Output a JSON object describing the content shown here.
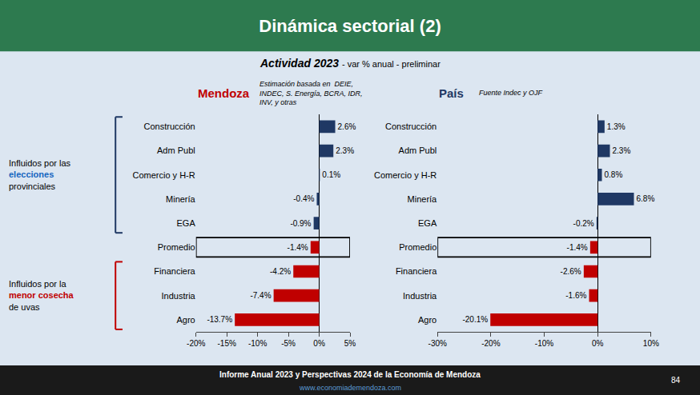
{
  "title": "Dinámica sectorial (2)",
  "subtitle": [
    "Actividad 2023",
    "- var % anual - preliminar"
  ],
  "background": "#dce6f1",
  "header": {
    "color": "#2d7a4f"
  },
  "footer": {
    "text": "Informe Anual 2023 y Perspectivas 2024 de la Economía de Mendoza",
    "url": "www.economiademendoza.com",
    "page": "84",
    "color": "#1a1a1a",
    "url_color": "#5b9bd5"
  },
  "annotations": [
    {
      "text": [
        "Influidos por las",
        {
          "text": "elecciones",
          "color": "#1565c0"
        },
        "provinciales"
      ],
      "bracket": {
        "from": "Construcción",
        "to": "EGA",
        "color": "#1f3864"
      }
    },
    {
      "text": [
        "Influidos por la",
        {
          "text": "menor cosecha",
          "color": "#c00000"
        },
        "de uvas"
      ],
      "bracket": {
        "from": "Financiera",
        "to": "Agro",
        "color": "#c00000"
      }
    }
  ],
  "chart_data": [
    {
      "type": "bar",
      "orientation": "horizontal",
      "title": {
        "text": "Mendoza",
        "color": "#c00000"
      },
      "note": "Estimación basada en  DEIE,\nINDEC, S. Energía, BCRA, IDR,\nINV, y otras",
      "categories": [
        "Construcción",
        "Adm Publ",
        "Comercio y H-R",
        "Minería",
        "EGA",
        "Promedio",
        "Financiera",
        "Industria",
        "Agro"
      ],
      "values": [
        2.6,
        2.3,
        0.1,
        -0.4,
        -0.9,
        -1.4,
        -4.2,
        -7.4,
        -13.7
      ],
      "value_labels": [
        "2.6%",
        "2.3%",
        "0.1%",
        "-0.4%",
        "-0.9%",
        "-1.4%",
        "-4.2%",
        "-7.4%",
        "-13.7%"
      ],
      "colors": [
        "#1f3864",
        "#1f3864",
        "#1f3864",
        "#1f3864",
        "#1f3864",
        "#c00000",
        "#c00000",
        "#c00000",
        "#c00000"
      ],
      "highlight": "Promedio",
      "xlim": [
        -20,
        5
      ],
      "xticks": [
        {
          "value": -20,
          "label": "-20%"
        },
        {
          "value": -15,
          "label": "-15%"
        },
        {
          "value": -10,
          "label": "-10%"
        },
        {
          "value": -5,
          "label": "-5%"
        },
        {
          "value": 0,
          "label": "0%"
        },
        {
          "value": 5,
          "label": "5%"
        }
      ],
      "data_labels": true,
      "grid": false
    },
    {
      "type": "bar",
      "orientation": "horizontal",
      "title": {
        "text": "País",
        "color": "#1f3864"
      },
      "note": "Fuente Indec y OJF",
      "categories": [
        "Construcción",
        "Adm Publ",
        "Comercio y H-R",
        "Minería",
        "EGA",
        "Promedio",
        "Financiera",
        "Industria",
        "Agro"
      ],
      "values": [
        1.3,
        2.3,
        0.8,
        6.8,
        -0.2,
        -1.4,
        -2.6,
        -1.6,
        -20.1
      ],
      "value_labels": [
        "1.3%",
        "2.3%",
        "0.8%",
        "6.8%",
        "-0.2%",
        "-1.4%",
        "-2.6%",
        "-1.6%",
        "-20.1%"
      ],
      "colors": [
        "#1f3864",
        "#1f3864",
        "#1f3864",
        "#1f3864",
        "#1f3864",
        "#c00000",
        "#c00000",
        "#c00000",
        "#c00000"
      ],
      "highlight": "Promedio",
      "xlim": [
        -30,
        10
      ],
      "xticks": [
        {
          "value": -30,
          "label": "-30%"
        },
        {
          "value": -20,
          "label": "-20%"
        },
        {
          "value": -10,
          "label": "-10%"
        },
        {
          "value": 0,
          "label": "0%"
        },
        {
          "value": 10,
          "label": "10%"
        }
      ],
      "data_labels": true,
      "grid": false
    }
  ]
}
